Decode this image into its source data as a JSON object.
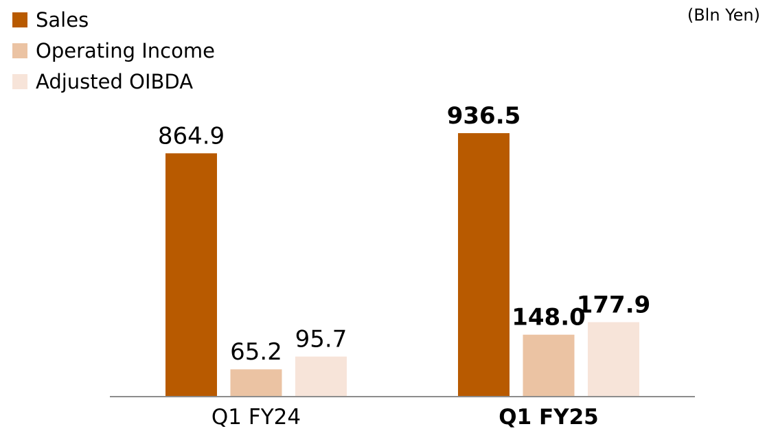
{
  "chart_data": {
    "type": "bar",
    "unit_label": "(Bln Yen)",
    "categories": [
      "Q1 FY24",
      "Q1 FY25"
    ],
    "highlight_category": "Q1 FY25",
    "series": [
      {
        "name": "Sales",
        "color": "#B85A00",
        "values": [
          864.9,
          936.5
        ],
        "labels": [
          "864.9",
          "936.5"
        ]
      },
      {
        "name": "Operating Income",
        "color": "#EBC3A3",
        "values": [
          65.2,
          148.0
        ],
        "labels": [
          "65.2",
          "148.0"
        ]
      },
      {
        "name": "Adjusted OIBDA",
        "color": "#F7E4D9",
        "values": [
          95.7,
          177.9
        ],
        "labels": [
          "95.7",
          "177.9"
        ]
      }
    ],
    "legend_position": "top-left",
    "grid": false
  }
}
